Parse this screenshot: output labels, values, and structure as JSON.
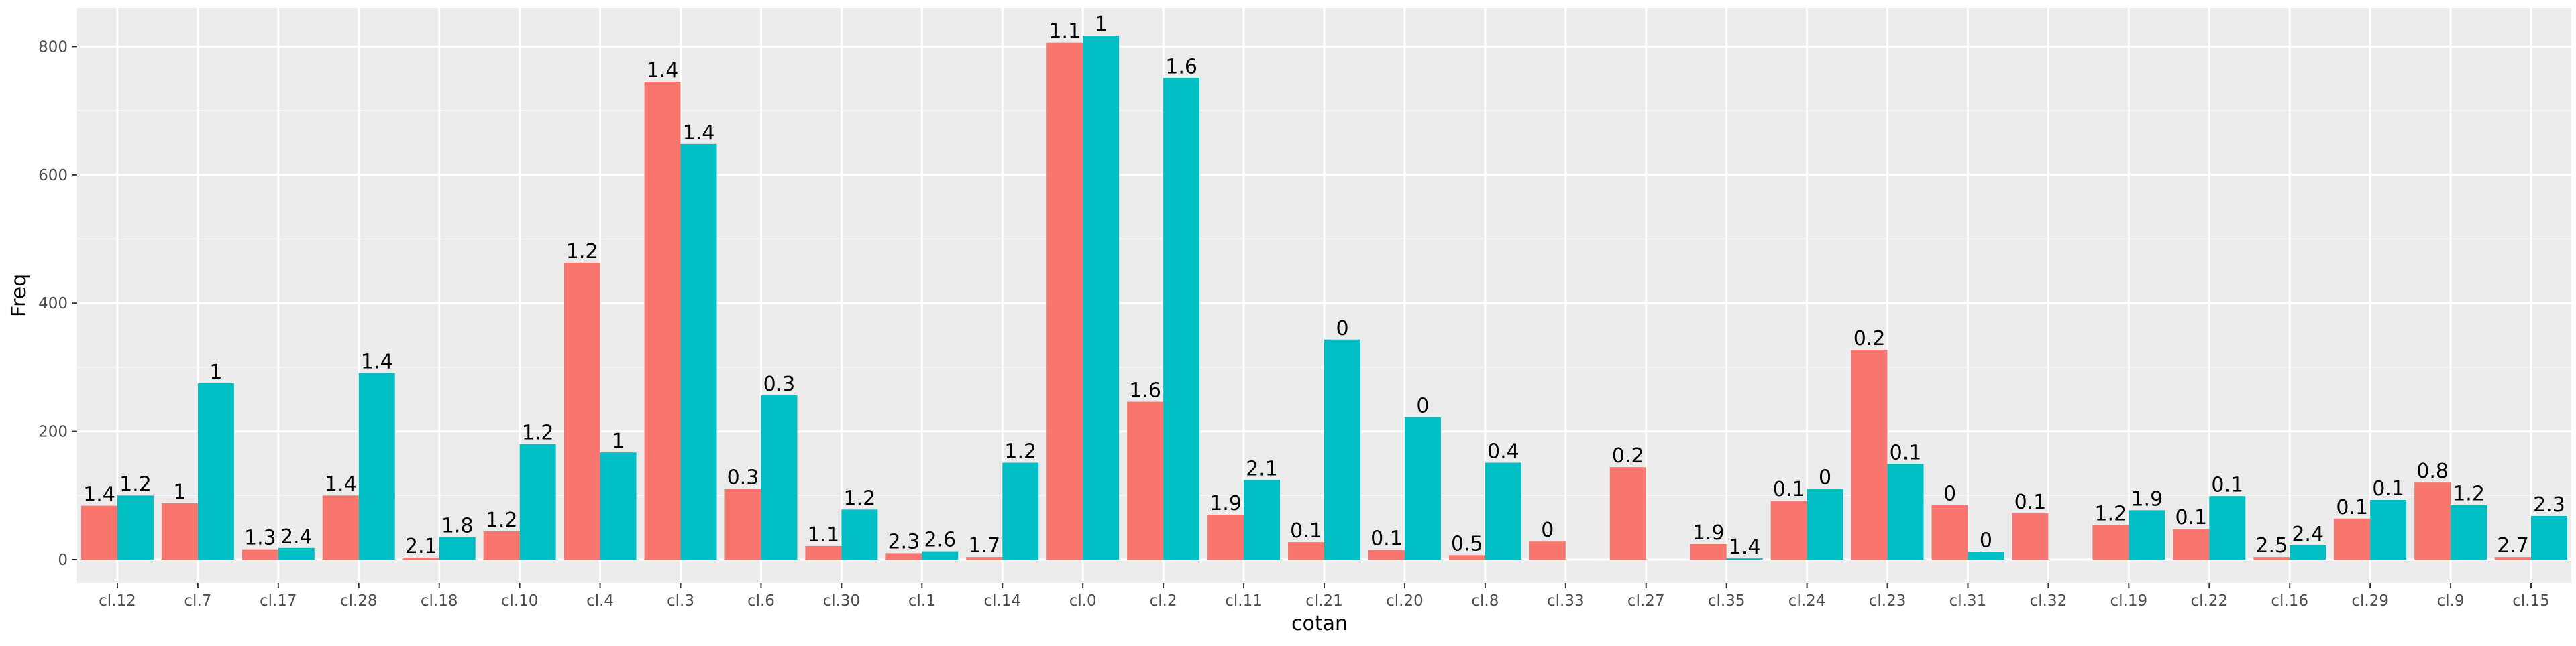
{
  "chart_data": {
    "type": "bar",
    "xlabel": "cotan",
    "ylabel": "Freq",
    "ylim": [
      0,
      860
    ],
    "y_ticks": [
      0,
      200,
      400,
      600,
      800
    ],
    "grid": true,
    "legend": "none",
    "categories": [
      "cl.12",
      "cl.7",
      "cl.17",
      "cl.28",
      "cl.18",
      "cl.10",
      "cl.4",
      "cl.3",
      "cl.6",
      "cl.30",
      "cl.1",
      "cl.14",
      "cl.0",
      "cl.2",
      "cl.11",
      "cl.21",
      "cl.20",
      "cl.8",
      "cl.33",
      "cl.27",
      "cl.35",
      "cl.24",
      "cl.23",
      "cl.31",
      "cl.32",
      "cl.19",
      "cl.22",
      "cl.16",
      "cl.29",
      "cl.9",
      "cl.15"
    ],
    "series": [
      {
        "color": "#F8766D",
        "values": [
          84,
          88,
          16,
          100,
          3,
          44,
          463,
          745,
          110,
          21,
          10,
          4,
          806,
          246,
          70,
          27,
          15,
          7,
          28,
          144,
          24,
          92,
          327,
          85,
          72,
          54,
          48,
          4,
          64,
          120,
          4
        ],
        "labels": [
          "1.4",
          "1",
          "1.3",
          "1.4",
          "2.1",
          "1.2",
          "1.2",
          "1.4",
          "0.3",
          "1.1",
          "2.3",
          "1.7",
          "1.1",
          "1.6",
          "1.9",
          "0.1",
          "0.1",
          "0.5",
          "0",
          "0.2",
          "1.9",
          "0.1",
          "0.2",
          "0",
          "0.1",
          "1.2",
          "0.1",
          "2.5",
          "0.1",
          "0.8",
          "2.7"
        ]
      },
      {
        "color": "#00BFC4",
        "values": [
          100,
          275,
          18,
          291,
          35,
          180,
          167,
          648,
          256,
          78,
          13,
          151,
          817,
          751,
          124,
          343,
          222,
          151,
          0,
          0,
          2,
          110,
          149,
          12,
          0,
          77,
          99,
          22,
          93,
          85,
          68
        ],
        "labels": [
          "1.2",
          "1",
          "2.4",
          "1.4",
          "1.8",
          "1.2",
          "1",
          "1.4",
          "0.3",
          "1.2",
          "2.6",
          "1.2",
          "1",
          "1.6",
          "2.1",
          "0",
          "0",
          "0.4",
          "",
          "",
          "1.4",
          "0",
          "0.1",
          "0",
          "",
          "1.9",
          "0.1",
          "2.4",
          "0.1",
          "1.2",
          "2.3"
        ]
      }
    ]
  }
}
